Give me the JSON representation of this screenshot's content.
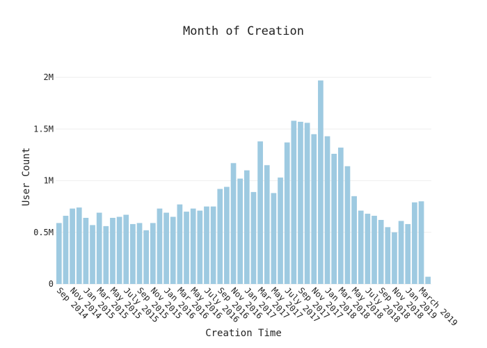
{
  "chart_data": {
    "type": "bar",
    "title": "Month of Creation",
    "xlabel": "Creation Time",
    "ylabel": "User Count",
    "categories": [
      "Sep 2014",
      null,
      "Nov 2014",
      null,
      "Jan 2015",
      null,
      "Mar 2015",
      null,
      "May 2015",
      null,
      "July 2015",
      null,
      "Sep 2015",
      null,
      "Nov 2015",
      null,
      "Jan 2016",
      null,
      "Mar 2016",
      null,
      "May 2016",
      null,
      "July 2016",
      null,
      "Sep 2016",
      null,
      "Nov 2016",
      null,
      "Jan 2017",
      null,
      "Mar 2017",
      null,
      "May 2017",
      null,
      "July 2017",
      null,
      "Sep 2017",
      null,
      "Nov 2017",
      null,
      "Jan 2018",
      null,
      "Mar 2018",
      null,
      "May 2018",
      null,
      "July 2018",
      null,
      "Sep 2018",
      null,
      "Nov 2018",
      null,
      "Jan 2019",
      null,
      "March 2019",
      null
    ],
    "values": [
      590000,
      660000,
      730000,
      740000,
      640000,
      570000,
      690000,
      560000,
      640000,
      650000,
      670000,
      580000,
      590000,
      520000,
      590000,
      730000,
      690000,
      650000,
      770000,
      700000,
      730000,
      710000,
      750000,
      750000,
      920000,
      940000,
      1170000,
      1020000,
      1100000,
      890000,
      1380000,
      1150000,
      880000,
      1030000,
      1370000,
      1580000,
      1570000,
      1560000,
      1450000,
      1970000,
      1430000,
      1260000,
      1320000,
      1140000,
      850000,
      710000,
      680000,
      660000,
      620000,
      550000,
      500000,
      610000,
      580000,
      790000,
      800000,
      70000
    ],
    "color": "#9ecae1",
    "ylim": [
      0,
      2075000
    ],
    "yticks": [
      0,
      {
        "value": 500000,
        "label": "0.5M"
      },
      {
        "value": 1000000,
        "label": "1M"
      },
      {
        "value": 1500000,
        "label": "1.5M"
      },
      {
        "value": 2000000,
        "label": "2M"
      }
    ],
    "grid": true
  }
}
